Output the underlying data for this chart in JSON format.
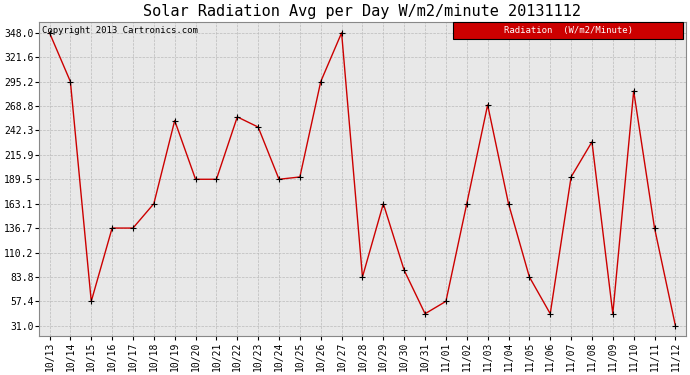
{
  "title": "Solar Radiation Avg per Day W/m2/minute 20131112",
  "copyright": "Copyright 2013 Cartronics.com",
  "legend_label": "Radiation  (W/m2/Minute)",
  "x_labels": [
    "10/13",
    "10/14",
    "10/15",
    "10/16",
    "10/17",
    "10/18",
    "10/19",
    "10/20",
    "10/21",
    "10/22",
    "10/23",
    "10/24",
    "10/25",
    "10/26",
    "10/27",
    "10/28",
    "10/29",
    "10/30",
    "10/31",
    "11/01",
    "11/02",
    "11/03",
    "11/04",
    "11/05",
    "11/06",
    "11/07",
    "11/08",
    "11/09",
    "11/10",
    "11/11",
    "11/12"
  ],
  "y_values": [
    348.0,
    295.2,
    57.4,
    136.7,
    136.7,
    163.1,
    253.0,
    189.5,
    189.5,
    257.0,
    246.0,
    189.5,
    192.0,
    295.2,
    348.0,
    83.8,
    163.1,
    91.0,
    44.0,
    57.4,
    163.1,
    270.0,
    163.1,
    83.8,
    44.0,
    192.0,
    230.0,
    44.0,
    285.0,
    136.7,
    31.0
  ],
  "y_ticks": [
    31.0,
    57.4,
    83.8,
    110.2,
    136.7,
    163.1,
    189.5,
    215.9,
    242.3,
    268.8,
    295.2,
    321.6,
    348.0
  ],
  "line_color": "#cc0000",
  "marker_color": "black",
  "bg_color": "#ffffff",
  "plot_bg_color": "#e8e8e8",
  "grid_color": "#bbbbbb",
  "legend_bg": "#cc0000",
  "legend_fg": "#ffffff",
  "title_fontsize": 11,
  "copyright_fontsize": 6.5,
  "tick_fontsize": 7,
  "legend_fontsize": 6.5,
  "ylim_min": 20.0,
  "ylim_max": 360.0
}
